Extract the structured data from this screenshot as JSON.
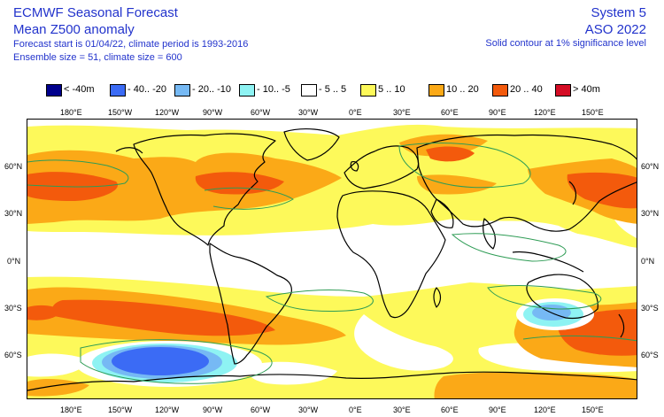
{
  "header": {
    "title": "ECMWF Seasonal Forecast",
    "subtitle": "Mean Z500 anomaly",
    "forecast_info": "Forecast start is 01/04/22, climate period is 1993-2016",
    "ensemble_info": "Ensemble size = 51, climate size = 600",
    "system": "System 5",
    "period": "ASO 2022",
    "contour_note": "Solid contour at 1% significance level"
  },
  "legend": [
    {
      "label": "< -40m",
      "color": "#00008c"
    },
    {
      "label": "- 40.. -20",
      "color": "#3b6bf5"
    },
    {
      "label": "- 20.. -10",
      "color": "#76b9f4"
    },
    {
      "label": "- 10.. -5",
      "color": "#8ef3f3"
    },
    {
      "label": "- 5 .. 5",
      "color": "#ffffff"
    },
    {
      "label": "5 .. 10",
      "color": "#fdf95a"
    },
    {
      "label": "10 .. 20",
      "color": "#fba917"
    },
    {
      "label": "20 .. 40",
      "color": "#f35a0c"
    },
    {
      "label": "> 40m",
      "color": "#d50d25"
    }
  ],
  "axes": {
    "lon_labels": [
      "180°E",
      "150°W",
      "120°W",
      "90°W",
      "60°W",
      "30°W",
      "0°E",
      "30°E",
      "60°E",
      "90°E",
      "120°E",
      "150°E"
    ],
    "lat_labels": [
      "60°N",
      "30°N",
      "0°N",
      "30°S",
      "60°S"
    ]
  }
}
